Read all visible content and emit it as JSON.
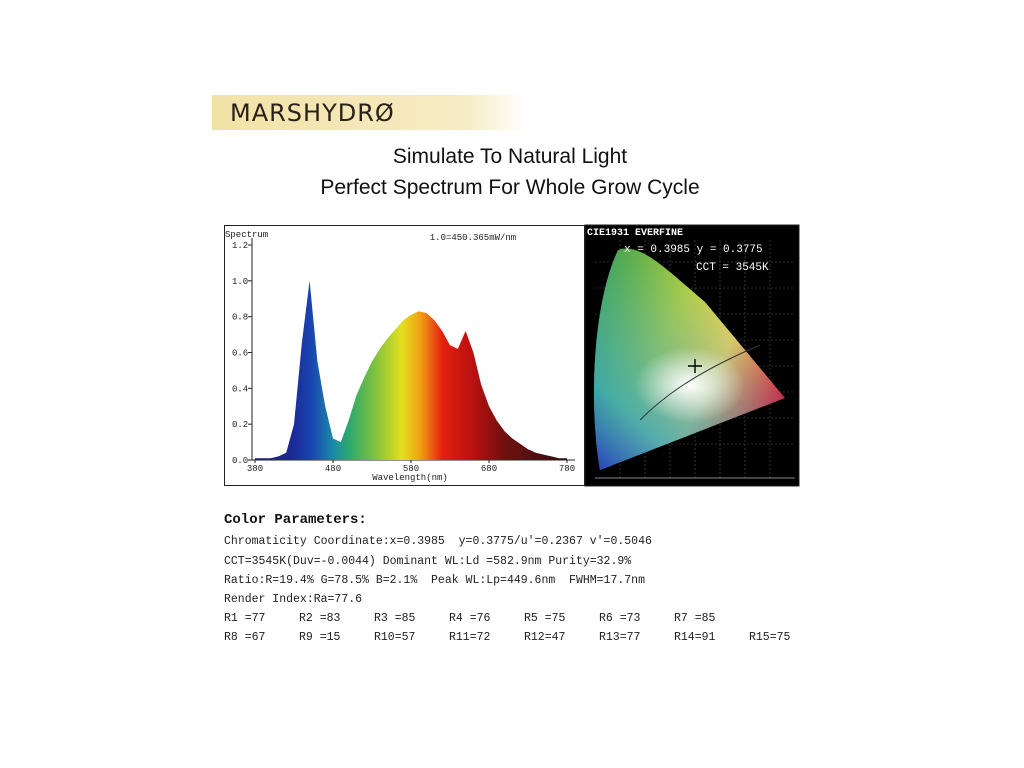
{
  "logo": "MARSHYDRØ",
  "headline": [
    "Simulate To Natural Light",
    "Perfect Spectrum For Whole Grow Cycle"
  ],
  "chart_data": {
    "type": "area",
    "ylabel": "Spectrum",
    "xlabel": "Wavelength(nm)",
    "annotation": "1.0=450.365mW/nm",
    "x": [
      380,
      390,
      400,
      410,
      420,
      430,
      440,
      450,
      460,
      470,
      480,
      490,
      500,
      510,
      520,
      530,
      540,
      550,
      560,
      570,
      580,
      590,
      600,
      610,
      620,
      630,
      640,
      650,
      660,
      670,
      680,
      690,
      700,
      710,
      720,
      730,
      740,
      750,
      760,
      770,
      780
    ],
    "values": [
      0.01,
      0.01,
      0.01,
      0.02,
      0.04,
      0.2,
      0.65,
      1.0,
      0.55,
      0.3,
      0.12,
      0.1,
      0.22,
      0.36,
      0.46,
      0.55,
      0.62,
      0.68,
      0.73,
      0.78,
      0.81,
      0.83,
      0.82,
      0.78,
      0.72,
      0.64,
      0.62,
      0.72,
      0.6,
      0.42,
      0.3,
      0.22,
      0.16,
      0.12,
      0.09,
      0.06,
      0.04,
      0.03,
      0.02,
      0.01,
      0.01
    ],
    "xlim": [
      380,
      780
    ],
    "xticks": [
      380,
      480,
      580,
      680,
      780
    ],
    "ylim": [
      0,
      1.2
    ],
    "yticks": [
      {
        "value": 0,
        "label": "0.0"
      },
      {
        "value": 0.2,
        "label": "0.2"
      },
      {
        "value": 0.4,
        "label": "0.4"
      },
      {
        "value": 0.6,
        "label": "0.6"
      },
      {
        "value": 0.8,
        "label": "0.8"
      },
      {
        "value": 1,
        "label": "1.0"
      },
      {
        "value": 1.2,
        "label": "1.2"
      }
    ]
  },
  "cie": {
    "title": "CIE1931 EVERFINE",
    "coordinates": "x = 0.3985 y = 0.3775",
    "cct": "CCT = 3545K"
  },
  "parameters": {
    "title": "Color Parameters:",
    "lines": [
      "Chromaticity Coordinate:x=0.3985  y=0.3775/u'=0.2367 v'=0.5046",
      "CCT=3545K(Duv=-0.0044) Dominant WL:Ld =582.9nm Purity=32.9%",
      "Ratio:R=19.4% G=78.5% B=2.1%  Peak WL:Lp=449.6nm  FWHM=17.7nm",
      "Render Index:Ra=77.6"
    ],
    "render_index": [
      [
        "R1 =77",
        "R2 =83",
        "R3 =85",
        "R4 =76",
        "R5 =75",
        "R6 =73",
        "R7 =85"
      ],
      [
        "R8 =67",
        "R9 =15",
        "R10=57",
        "R11=72",
        "R12=47",
        "R13=77",
        "R14=91",
        "R15=75"
      ]
    ]
  }
}
